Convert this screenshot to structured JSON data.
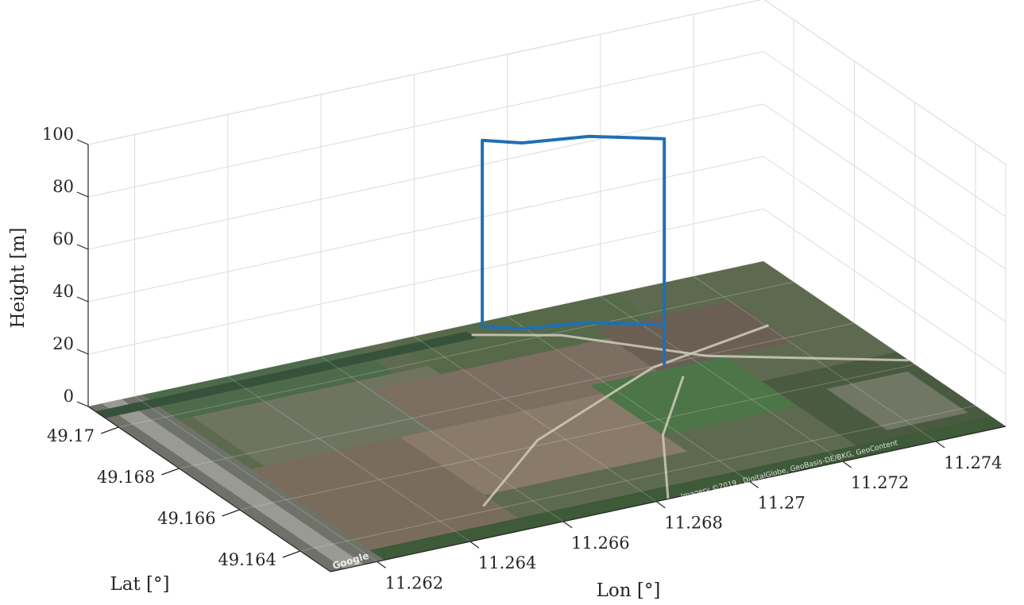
{
  "chart_data": {
    "type": "line",
    "projection": "3d",
    "xlabel": "Lon [°]",
    "ylabel": "Lat [°]",
    "zlabel": "Height [m]",
    "xlim": [
      11.261,
      11.2755
    ],
    "ylim": [
      49.163,
      49.171
    ],
    "zlim": [
      0,
      100
    ],
    "xticks": [
      11.262,
      11.264,
      11.266,
      11.268,
      11.27,
      11.272,
      11.274
    ],
    "xtick_labels": [
      "11.262",
      "11.264",
      "11.266",
      "11.268",
      "11.27",
      "11.272",
      "11.274"
    ],
    "yticks": [
      49.164,
      49.166,
      49.168,
      49.17
    ],
    "ytick_labels": [
      "49.164",
      "49.166",
      "49.168",
      "49.17"
    ],
    "zticks": [
      0,
      20,
      40,
      60,
      80,
      100
    ],
    "ztick_labels": [
      "0",
      "20",
      "40",
      "60",
      "80",
      "100"
    ],
    "grid": true,
    "ground_texture": "satellite imagery",
    "series": [
      {
        "color": "#1f6fb5",
        "points": [
          {
            "lon": 11.27142,
            "lat": 49.168,
            "h": 0
          },
          {
            "lon": 11.27142,
            "lat": 49.168,
            "h": 10
          },
          {
            "lon": 11.27142,
            "lat": 49.168,
            "h": 20
          },
          {
            "lon": 11.27142,
            "lat": 49.168,
            "h": 30
          },
          {
            "lon": 11.27142,
            "lat": 49.168,
            "h": 40
          },
          {
            "lon": 11.27142,
            "lat": 49.168,
            "h": 50
          },
          {
            "lon": 11.27142,
            "lat": 49.168,
            "h": 60
          },
          {
            "lon": 11.27142,
            "lat": 49.168,
            "h": 70
          },
          {
            "lon": 11.27142,
            "lat": 49.168,
            "h": 80
          },
          {
            "lon": 11.27142,
            "lat": 49.168,
            "h": 86
          },
          {
            "lon": 11.27025,
            "lat": 49.16868,
            "h": 86
          },
          {
            "lon": 11.269,
            "lat": 49.16897,
            "h": 86
          },
          {
            "lon": 11.26841,
            "lat": 49.16938,
            "h": 86
          },
          {
            "lon": 11.26841,
            "lat": 49.16938,
            "h": 80
          },
          {
            "lon": 11.26841,
            "lat": 49.16938,
            "h": 70
          },
          {
            "lon": 11.26841,
            "lat": 49.16938,
            "h": 60
          },
          {
            "lon": 11.26841,
            "lat": 49.16938,
            "h": 50
          },
          {
            "lon": 11.26841,
            "lat": 49.16938,
            "h": 40
          },
          {
            "lon": 11.26841,
            "lat": 49.16938,
            "h": 30
          },
          {
            "lon": 11.26841,
            "lat": 49.16938,
            "h": 20
          },
          {
            "lon": 11.26841,
            "lat": 49.16938,
            "h": 15
          },
          {
            "lon": 11.269,
            "lat": 49.16897,
            "h": 15
          },
          {
            "lon": 11.27025,
            "lat": 49.16868,
            "h": 15
          },
          {
            "lon": 11.27142,
            "lat": 49.168,
            "h": 15
          },
          {
            "lon": 11.27142,
            "lat": 49.168,
            "h": 0
          }
        ]
      }
    ]
  },
  "map_attribution": {
    "provider": "Google",
    "imagery": "Imagery ©2019 , DigitalGlobe, GeoBasis-DE/BKG, GeoContent"
  }
}
